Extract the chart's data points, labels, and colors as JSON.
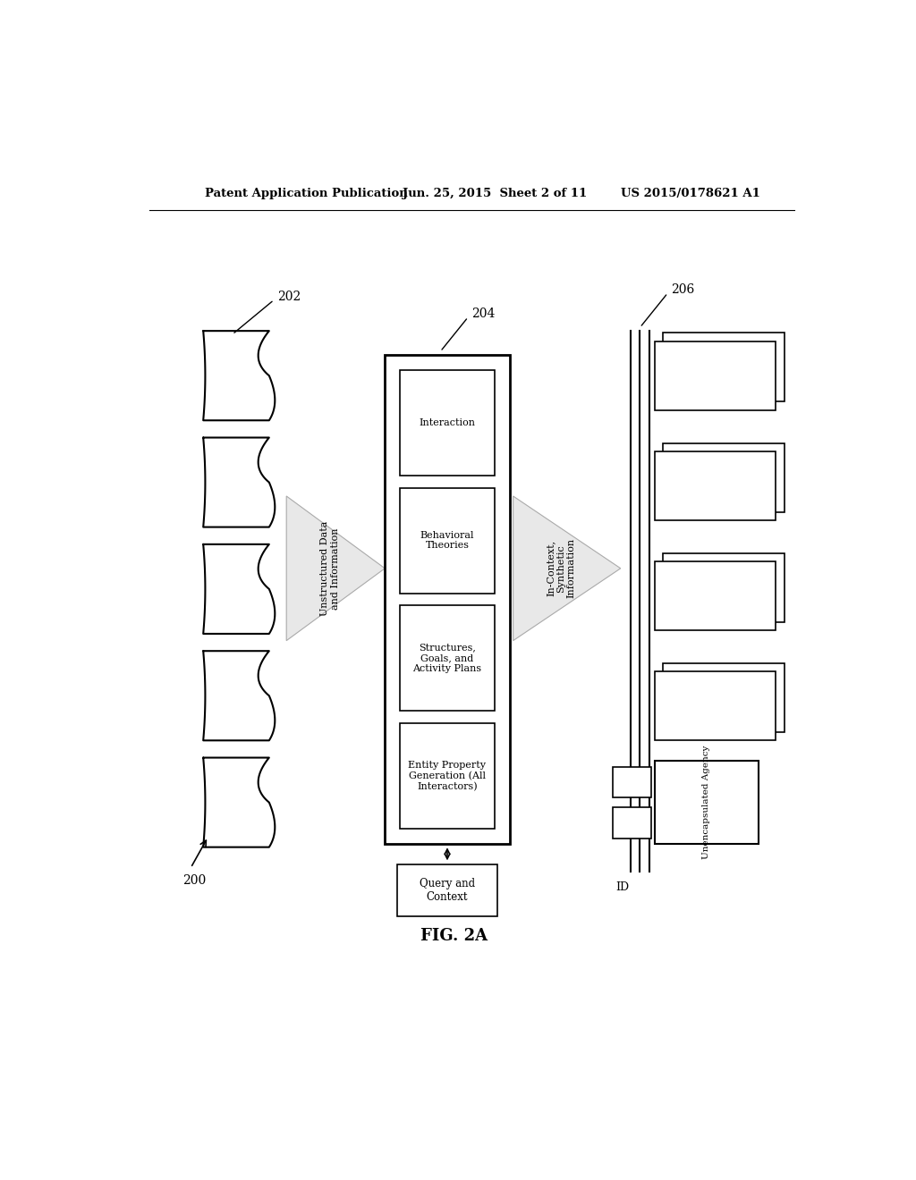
{
  "bg_color": "#ffffff",
  "header_text": "Patent Application Publication",
  "header_date": "Jun. 25, 2015  Sheet 2 of 11",
  "header_patent": "US 2015/0178621 A1",
  "fig_label": "FIG. 2A",
  "label_202": "202",
  "label_204": "204",
  "label_206": "206",
  "label_200": "200",
  "arrow_label1": "Unstructured Data\nand Information",
  "arrow_label2": "In-Context,\nSynthetic\nInformation",
  "boxes_204": [
    "Interaction",
    "Behavioral\nTheories",
    "Structures,\nGoals, and\nActivity Plans",
    "Entity Property\nGeneration (All\nInteractors)"
  ],
  "box_query": "Query and\nContext",
  "box_unencapsulated": "Unencapsulated Agency",
  "box_id": "ID",
  "line_color": "#aaaaaa",
  "arrow_fill": "#e8e8e8",
  "arrow_edge": "#aaaaaa"
}
